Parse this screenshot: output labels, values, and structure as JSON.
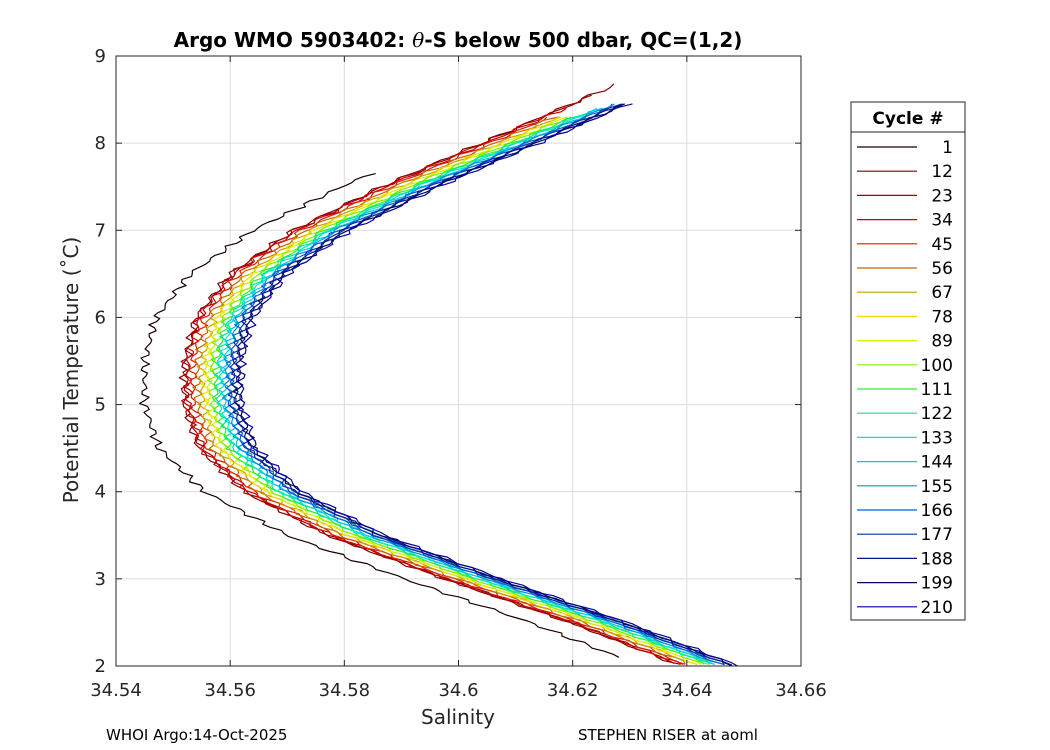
{
  "chart_data": {
    "type": "line",
    "title_prefix": "Argo WMO 5903402: ",
    "title_symbol": "θ",
    "title_suffix": "-S below 500 dbar,  QC=(1,2)",
    "xlabel": "Salinity",
    "ylabel": "Potential Temperature (˚C)",
    "xlim": [
      34.54,
      34.66
    ],
    "ylim": [
      2,
      9
    ],
    "xticks": [
      34.54,
      34.56,
      34.58,
      34.6,
      34.62,
      34.64,
      34.66
    ],
    "xtick_labels": [
      "34.54",
      "34.56",
      "34.58",
      "34.6",
      "34.62",
      "34.64",
      "34.66"
    ],
    "yticks": [
      2,
      3,
      4,
      5,
      6,
      7,
      8,
      9
    ],
    "ytick_labels": [
      "2",
      "3",
      "4",
      "5",
      "6",
      "7",
      "8",
      "9"
    ],
    "grid": true,
    "legend": {
      "title": "Cycle #",
      "position": "outside-right",
      "entries": [
        {
          "label": "1",
          "color": "#1a0000"
        },
        {
          "label": "12",
          "color": "#800000"
        },
        {
          "label": "23",
          "color": "#a40000"
        },
        {
          "label": "34",
          "color": "#c80000"
        },
        {
          "label": "45",
          "color": "#e01800"
        },
        {
          "label": "56",
          "color": "#c86400"
        },
        {
          "label": "67",
          "color": "#c8a000"
        },
        {
          "label": "78",
          "color": "#f0e000"
        },
        {
          "label": "89",
          "color": "#d8f000"
        },
        {
          "label": "100",
          "color": "#80f000"
        },
        {
          "label": "111",
          "color": "#30f030"
        },
        {
          "label": "122",
          "color": "#00e890"
        },
        {
          "label": "133",
          "color": "#00e8c8"
        },
        {
          "label": "144",
          "color": "#00c8e8"
        },
        {
          "label": "155",
          "color": "#0090d8"
        },
        {
          "label": "166",
          "color": "#0060d0"
        },
        {
          "label": "177",
          "color": "#0030b0"
        },
        {
          "label": "188",
          "color": "#001880"
        },
        {
          "label": "199",
          "color": "#000858"
        },
        {
          "label": "210",
          "color": "#0000a0"
        }
      ]
    },
    "profile_shape": {
      "temperature": [
        2.0,
        2.5,
        3.0,
        3.5,
        4.0,
        4.5,
        5.0,
        5.5,
        6.0,
        6.5,
        7.0,
        7.5,
        8.0,
        8.5
      ],
      "salinity": [
        34.6455,
        34.626,
        34.604,
        34.5835,
        34.569,
        34.561,
        34.5585,
        34.5585,
        34.5605,
        34.5665,
        34.5775,
        34.593,
        34.6105,
        34.628
      ]
    },
    "series": [
      {
        "cycle": "1",
        "color": "#1a0000",
        "salinity_offset": -0.0135,
        "tmin": 2.1,
        "tmax": 7.65
      },
      {
        "cycle": "12",
        "color": "#800000",
        "salinity_offset": -0.0065,
        "tmin": 2.02,
        "tmax": 8.68
      },
      {
        "cycle": "23",
        "color": "#a40000",
        "salinity_offset": -0.0062,
        "tmin": 2.03,
        "tmax": 8.55
      },
      {
        "cycle": "34",
        "color": "#c80000",
        "salinity_offset": -0.0058,
        "tmin": 2.02,
        "tmax": 8.4
      },
      {
        "cycle": "45",
        "color": "#e01800",
        "salinity_offset": -0.005,
        "tmin": 2.02,
        "tmax": 8.3
      },
      {
        "cycle": "56",
        "color": "#c86400",
        "salinity_offset": -0.0042,
        "tmin": 2.02,
        "tmax": 8.3
      },
      {
        "cycle": "67",
        "color": "#c8a000",
        "salinity_offset": -0.0034,
        "tmin": 2.02,
        "tmax": 8.3
      },
      {
        "cycle": "78",
        "color": "#f0e000",
        "salinity_offset": -0.0028,
        "tmin": 2.02,
        "tmax": 8.3
      },
      {
        "cycle": "89",
        "color": "#d8f000",
        "salinity_offset": -0.0022,
        "tmin": 2.02,
        "tmax": 8.3
      },
      {
        "cycle": "100",
        "color": "#80f000",
        "salinity_offset": -0.0016,
        "tmin": 2.02,
        "tmax": 8.3
      },
      {
        "cycle": "111",
        "color": "#30f030",
        "salinity_offset": -0.001,
        "tmin": 2.02,
        "tmax": 8.3
      },
      {
        "cycle": "122",
        "color": "#00e890",
        "salinity_offset": -0.0005,
        "tmin": 2.02,
        "tmax": 8.35
      },
      {
        "cycle": "133",
        "color": "#00e8c8",
        "salinity_offset": 0.0,
        "tmin": 2.02,
        "tmax": 8.4
      },
      {
        "cycle": "144",
        "color": "#00c8e8",
        "salinity_offset": 0.0005,
        "tmin": 2.02,
        "tmax": 8.4
      },
      {
        "cycle": "155",
        "color": "#0090d8",
        "salinity_offset": 0.001,
        "tmin": 2.02,
        "tmax": 8.45
      },
      {
        "cycle": "166",
        "color": "#0060d0",
        "salinity_offset": 0.0015,
        "tmin": 2.02,
        "tmax": 8.45
      },
      {
        "cycle": "177",
        "color": "#0030b0",
        "salinity_offset": 0.002,
        "tmin": 2.01,
        "tmax": 8.45
      },
      {
        "cycle": "188",
        "color": "#001880",
        "salinity_offset": 0.0025,
        "tmin": 2.01,
        "tmax": 8.45
      },
      {
        "cycle": "199",
        "color": "#000858",
        "salinity_offset": 0.003,
        "tmin": 2.0,
        "tmax": 8.45
      },
      {
        "cycle": "210",
        "color": "#0000a0",
        "salinity_offset": 0.0035,
        "tmin": 2.0,
        "tmax": 8.45
      }
    ]
  },
  "footer": {
    "left": "WHOI Argo:14-Oct-2025",
    "right": "STEPHEN RISER at aoml"
  }
}
